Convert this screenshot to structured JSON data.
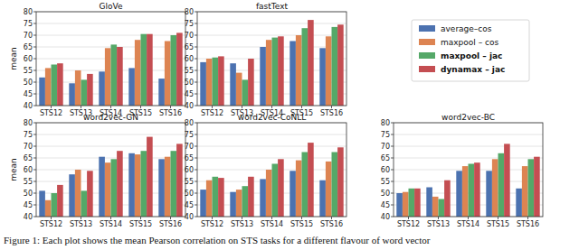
{
  "chart_data": [
    {
      "type": "bar",
      "title": "GloVe",
      "ylabel": "mean",
      "categories": [
        "STS12",
        "STS13",
        "STS14",
        "STS15",
        "STS16"
      ],
      "ylim": [
        40,
        80
      ],
      "yticks": [
        40,
        45,
        50,
        55,
        60,
        65,
        70,
        75,
        80
      ],
      "grid": true,
      "legend": "right",
      "series": [
        {
          "name": "average–cos",
          "color": "#4c72b0",
          "values": [
            52,
            49.5,
            54.5,
            56,
            51.5
          ]
        },
        {
          "name": "maxpool – cos",
          "color": "#dd8452",
          "values": [
            56,
            55,
            64.5,
            68,
            67.5
          ]
        },
        {
          "name": "maxpool – jac",
          "color": "#55a868",
          "values": [
            57.5,
            51,
            66,
            70.5,
            70
          ]
        },
        {
          "name": "dynamax – jac",
          "color": "#c44e52",
          "values": [
            58,
            53.5,
            65,
            70.5,
            71
          ]
        }
      ]
    },
    {
      "type": "bar",
      "title": "fastText",
      "categories": [
        "STS12",
        "STS13",
        "STS14",
        "STS15",
        "STS16"
      ],
      "ylim": [
        40,
        80
      ],
      "yticks": [
        40,
        45,
        50,
        55,
        60,
        65,
        70,
        75,
        80
      ],
      "grid": true,
      "series": [
        {
          "name": "average–cos",
          "color": "#4c72b0",
          "values": [
            58.5,
            58,
            65,
            67.5,
            64.5
          ]
        },
        {
          "name": "maxpool – cos",
          "color": "#dd8452",
          "values": [
            60,
            54,
            68,
            70,
            69.5
          ]
        },
        {
          "name": "maxpool – jac",
          "color": "#55a868",
          "values": [
            60.5,
            51,
            69,
            73,
            73.5
          ]
        },
        {
          "name": "dynamax – jac",
          "color": "#c44e52",
          "values": [
            61,
            60,
            69.5,
            76.5,
            74.5
          ]
        }
      ]
    },
    {
      "type": "bar",
      "title": "word2vec-GN",
      "ylabel": "mean",
      "categories": [
        "STS12",
        "STS13",
        "STS14",
        "STS15",
        "STS16"
      ],
      "ylim": [
        40,
        80
      ],
      "yticks": [
        40,
        45,
        50,
        55,
        60,
        65,
        70,
        75,
        80
      ],
      "grid": true,
      "series": [
        {
          "name": "average–cos",
          "color": "#4c72b0",
          "values": [
            51,
            58,
            65.5,
            67,
            64.5
          ]
        },
        {
          "name": "maxpool – cos",
          "color": "#dd8452",
          "values": [
            47,
            60,
            63,
            66.5,
            65.5
          ]
        },
        {
          "name": "maxpool – jac",
          "color": "#55a868",
          "values": [
            50,
            51,
            64.5,
            68,
            68
          ]
        },
        {
          "name": "dynamax – jac",
          "color": "#c44e52",
          "values": [
            53.5,
            59.5,
            68,
            74,
            71
          ]
        }
      ]
    },
    {
      "type": "bar",
      "title": "word2vec-CoNLL",
      "categories": [
        "STS12",
        "STS13",
        "STS14",
        "STS15",
        "STS16"
      ],
      "ylim": [
        40,
        80
      ],
      "yticks": [
        40,
        45,
        50,
        55,
        60,
        65,
        70,
        75,
        80
      ],
      "grid": true,
      "series": [
        {
          "name": "average–cos",
          "color": "#4c72b0",
          "values": [
            51.5,
            50.5,
            56,
            59.5,
            55.5
          ]
        },
        {
          "name": "maxpool – cos",
          "color": "#dd8452",
          "values": [
            55.5,
            51.5,
            60,
            64,
            63.5
          ]
        },
        {
          "name": "maxpool – jac",
          "color": "#55a868",
          "values": [
            57,
            53,
            62.5,
            67.5,
            67.5
          ]
        },
        {
          "name": "dynamax – jac",
          "color": "#c44e52",
          "values": [
            56.5,
            57,
            64.5,
            71.5,
            69.5
          ]
        }
      ]
    },
    {
      "type": "bar",
      "title": "word2vec-BC",
      "categories": [
        "STS12",
        "STS13",
        "STS14",
        "STS15",
        "STS16"
      ],
      "ylim": [
        40,
        80
      ],
      "yticks": [
        40,
        45,
        50,
        55,
        60,
        65,
        70,
        75,
        80
      ],
      "grid": true,
      "series": [
        {
          "name": "average–cos",
          "color": "#4c72b0",
          "values": [
            50,
            52.5,
            59.5,
            59.5,
            52
          ]
        },
        {
          "name": "maxpool – cos",
          "color": "#dd8452",
          "values": [
            50.5,
            48.5,
            61.5,
            64.5,
            61.5
          ]
        },
        {
          "name": "maxpool – jac",
          "color": "#55a868",
          "values": [
            52,
            47.5,
            62.5,
            67,
            64.5
          ]
        },
        {
          "name": "dynamax – jac",
          "color": "#c44e52",
          "values": [
            52,
            55.5,
            63,
            71,
            65.5
          ]
        }
      ]
    }
  ],
  "caption": "Figure 1:  Each plot shows the mean Pearson correlation on STS tasks for a different flavour of word vector"
}
